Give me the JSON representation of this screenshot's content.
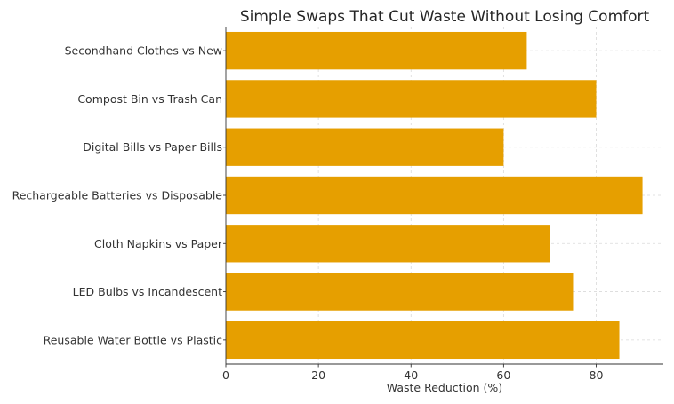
{
  "chart_data": {
    "type": "bar",
    "orientation": "horizontal",
    "title": "Simple Swaps That Cut Waste Without Losing Comfort",
    "xlabel": "Waste Reduction (%)",
    "ylabel": "",
    "categories": [
      "Reusable Water Bottle vs Plastic",
      "LED Bulbs vs Incandescent",
      "Cloth Napkins vs Paper",
      "Rechargeable Batteries vs Disposable",
      "Digital Bills vs Paper Bills",
      "Compost Bin vs Trash Can",
      "Secondhand Clothes vs New"
    ],
    "values": [
      85,
      75,
      70,
      90,
      60,
      80,
      65
    ],
    "xlim": [
      0,
      94.5
    ],
    "xticks": [
      0,
      20,
      40,
      60,
      80
    ],
    "grid": true,
    "bar_color": "#e69f00"
  }
}
